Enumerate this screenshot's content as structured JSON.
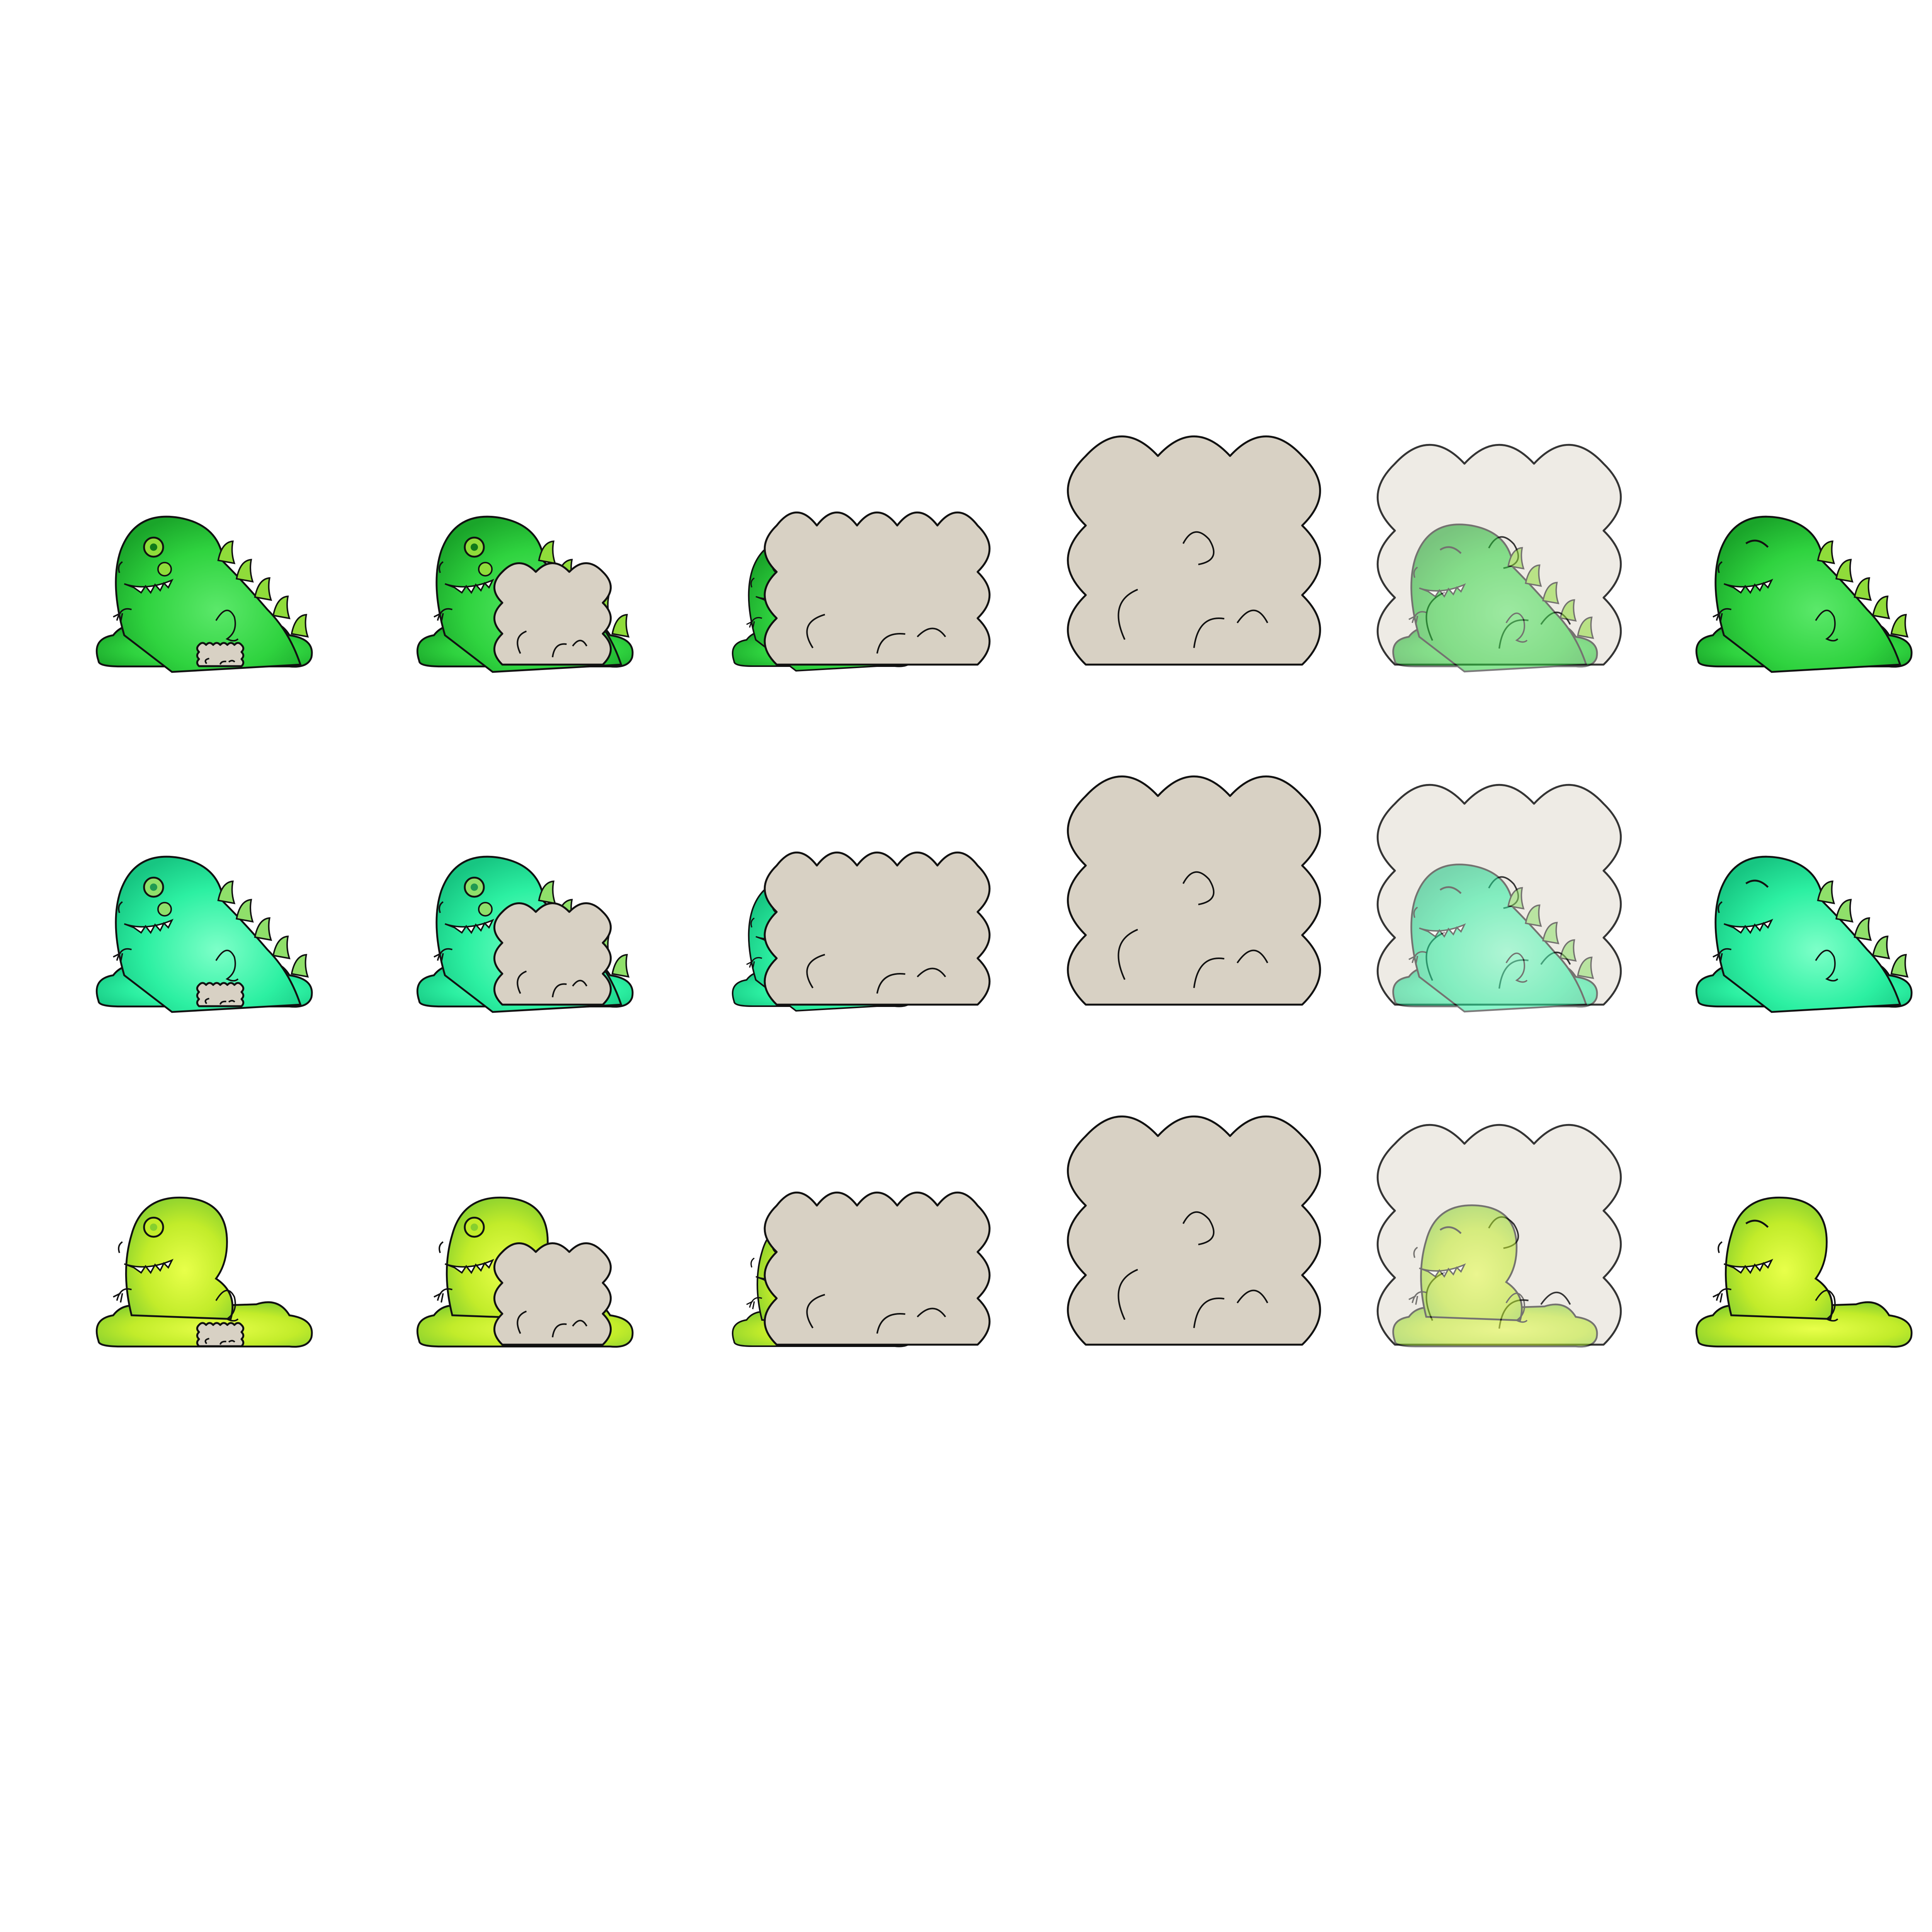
{
  "sprite_sheet": {
    "background": "#ffffff",
    "rows": [
      {
        "variant": "green-monster-with-back-spikes",
        "colors": {
          "light": "#5be86a",
          "mid": "#2fd33f",
          "dark": "#1aa52a",
          "spike": "#8fdc3a",
          "spike_tip": "#0f7a1a"
        },
        "frames": [
          "monster-idle",
          "monster-dust-small",
          "monster-dust-large",
          "dust-cloud-full",
          "monster-fading-in",
          "monster-idle-angry"
        ]
      },
      {
        "variant": "mint-monster-with-back-spikes",
        "colors": {
          "light": "#7dffc8",
          "mid": "#2cf0a2",
          "dark": "#17c682",
          "spike": "#8fe06a",
          "spike_tip": "#1f9a52"
        },
        "frames": [
          "monster-idle",
          "monster-dust-small",
          "monster-dust-large",
          "dust-cloud-full",
          "monster-fading-in",
          "monster-idle-angry"
        ]
      },
      {
        "variant": "yellow-green-blob-monster",
        "colors": {
          "light": "#e8ff4a",
          "mid": "#c2ec2a",
          "dark": "#86cf2f",
          "spike": "#c2ec2a",
          "spike_tip": "#86cf2f"
        },
        "frames": [
          "monster-idle",
          "monster-dust-small",
          "monster-dust-large",
          "dust-cloud-full",
          "monster-fading-in",
          "monster-idle-angry"
        ]
      }
    ],
    "dust_color": "#d8d1c4",
    "dust_faded_color": "#ece8e1",
    "outline_color": "#111111"
  }
}
